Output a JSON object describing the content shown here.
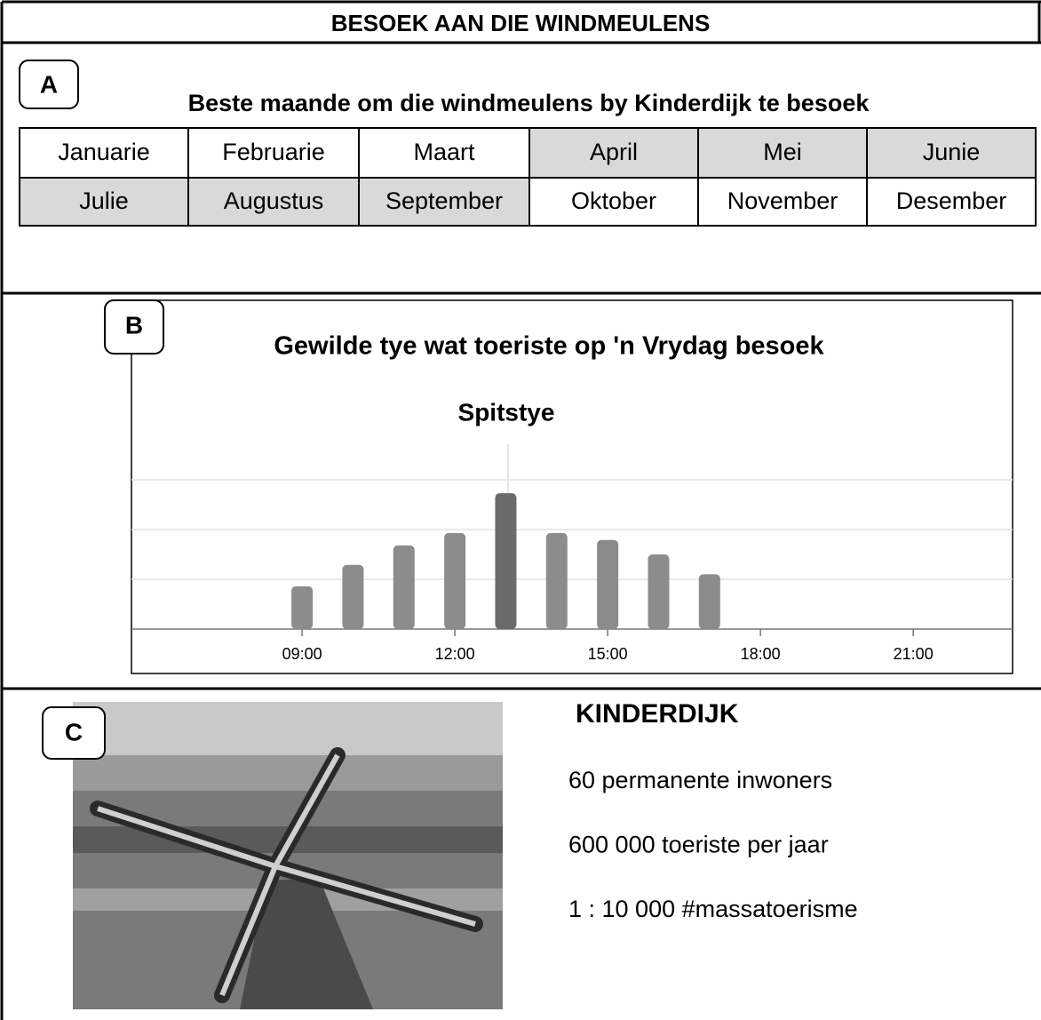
{
  "header": {
    "title": "BESOEK AAN DIE WINDMEULENS"
  },
  "section_a": {
    "label": "A",
    "title": "Beste maande om die windmeulens by Kinderdijk te besoek",
    "months": [
      [
        {
          "text": "Januarie",
          "shaded": false
        },
        {
          "text": "Februarie",
          "shaded": false
        },
        {
          "text": "Maart",
          "shaded": false
        },
        {
          "text": "April",
          "shaded": true
        },
        {
          "text": "Mei",
          "shaded": true
        },
        {
          "text": "Junie",
          "shaded": true
        }
      ],
      [
        {
          "text": "Julie",
          "shaded": true
        },
        {
          "text": "Augustus",
          "shaded": true
        },
        {
          "text": "September",
          "shaded": true
        },
        {
          "text": "Oktober",
          "shaded": false
        },
        {
          "text": "November",
          "shaded": false
        },
        {
          "text": "Desember",
          "shaded": false
        }
      ]
    ]
  },
  "section_b": {
    "label": "B",
    "chart_data": {
      "type": "bar",
      "title": "Gewilde tye wat toeriste op 'n Vrydag besoek",
      "subtitle": "Spitstye",
      "x": [
        9,
        10,
        11,
        12,
        13,
        14,
        15,
        16,
        17
      ],
      "values": [
        0.86,
        1.29,
        1.68,
        1.93,
        2.73,
        1.93,
        1.79,
        1.5,
        1.1
      ],
      "colors": [
        "#8c8c8c",
        "#8c8c8c",
        "#8c8c8c",
        "#8c8c8c",
        "#6a6a6a",
        "#8c8c8c",
        "#8c8c8c",
        "#8c8c8c",
        "#8c8c8c"
      ],
      "xlim": [
        5.65,
        22.95
      ],
      "xticks": [
        {
          "value": 9,
          "label": "09:00"
        },
        {
          "value": 12,
          "label": "12:00"
        },
        {
          "value": 15,
          "label": "15:00"
        },
        {
          "value": 18,
          "label": "18:00"
        },
        {
          "value": 21,
          "label": "21:00"
        }
      ],
      "ylim": [
        0,
        3
      ],
      "yticks": [
        1,
        2,
        3
      ],
      "grid": true
    }
  },
  "section_c": {
    "label": "C",
    "title": "KINDERDIJK",
    "lines": [
      "60 permanente inwoners",
      "600 000 toeriste per jaar",
      "1 : 10 000  #massatoerisme"
    ]
  }
}
